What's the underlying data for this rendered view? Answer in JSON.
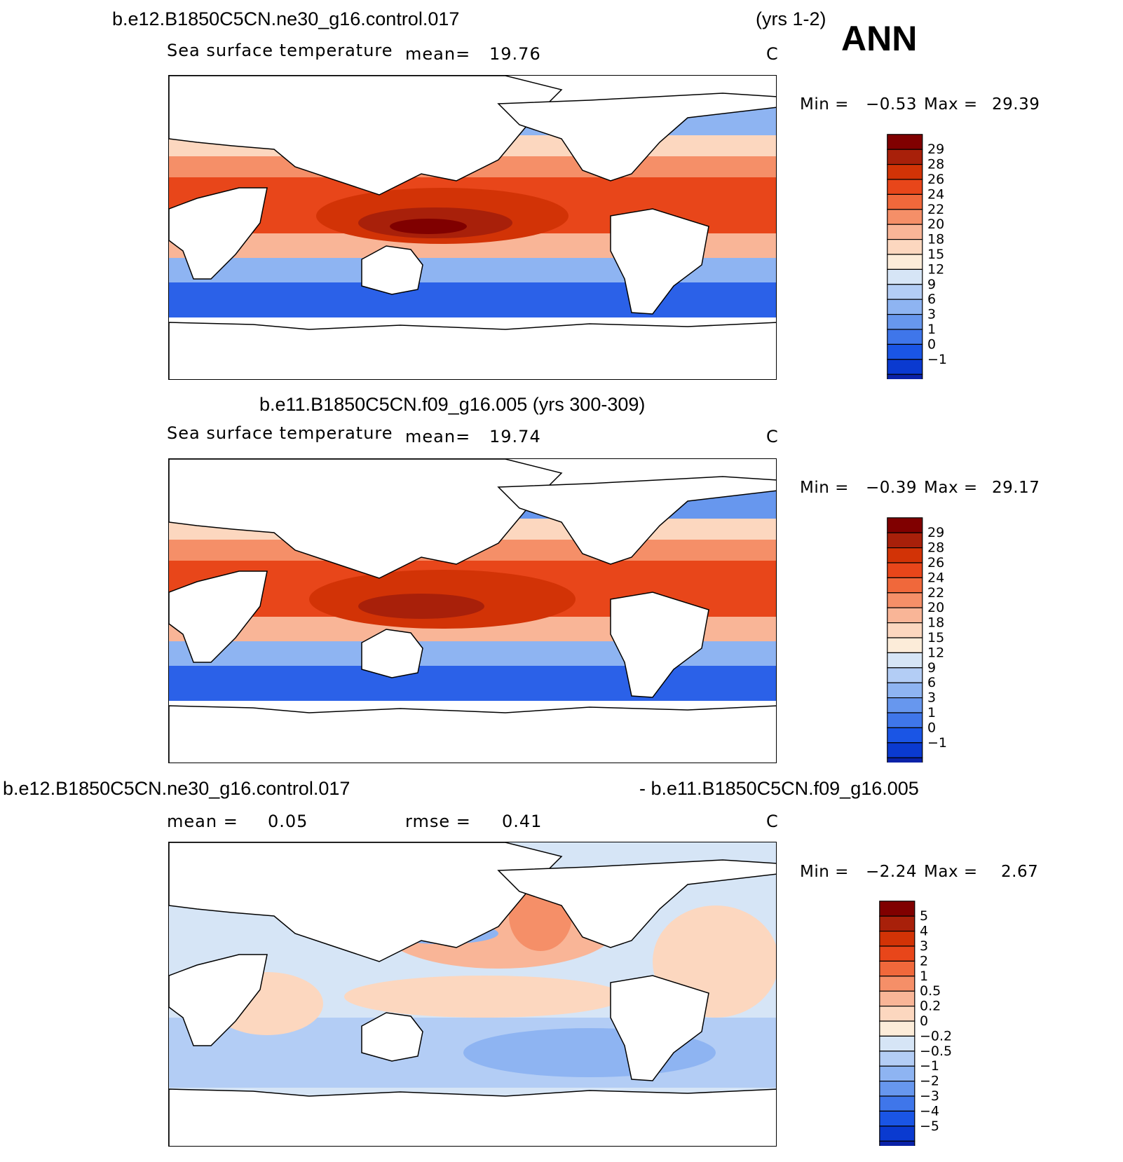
{
  "season": "ANN",
  "panels": [
    {
      "case_title": "b.e12.B1850C5CN.ne30_g16.control.017",
      "years": "(yrs 1-2)",
      "subtitle": "Sea surface temperature",
      "mean_label": "mean=",
      "mean_value": "19.76",
      "units": "C",
      "min_label": "Min =",
      "min_value": "−0.53",
      "max_label": "Max =",
      "max_value": "29.39"
    },
    {
      "case_title": "b.e11.B1850C5CN.f09_g16.005 (yrs 300-309)",
      "subtitle": "Sea surface temperature",
      "mean_label": "mean=",
      "mean_value": "19.74",
      "units": "C",
      "min_label": "Min =",
      "min_value": "−0.39",
      "max_label": "Max =",
      "max_value": "29.17"
    },
    {
      "case_title_left": "b.e12.B1850C5CN.ne30_g16.control.017",
      "case_title_right": "- b.e11.B1850C5CN.f09_g16.005",
      "mean_label": "mean =",
      "mean_value": "0.05",
      "rmse_label": "rmse =",
      "rmse_value": "0.41",
      "units": "C",
      "min_label": "Min =",
      "min_value": "−2.24",
      "max_label": "Max =",
      "max_value": "2.67"
    }
  ],
  "chart_data": [
    {
      "type": "heatmap",
      "title": "b.e12.B1850C5CN.ne30_g16.control.017 (yrs 1-2)",
      "variable": "Sea surface temperature",
      "units": "C",
      "mean": 19.76,
      "min": -0.53,
      "max": 29.39,
      "levels": [
        "29",
        "28",
        "26",
        "24",
        "22",
        "20",
        "18",
        "15",
        "12",
        "9",
        "6",
        "3",
        "1",
        "0",
        "−1"
      ],
      "colors": [
        "#800000",
        "#a8200a",
        "#d23306",
        "#e8461a",
        "#f0683b",
        "#f58f68",
        "#f9b597",
        "#fcd7bf",
        "#fcecd9",
        "#d6e5f6",
        "#b3cdf5",
        "#8eb4f2",
        "#6797ee",
        "#3f76ea",
        "#1a55e5",
        "#0a3ad0",
        "#0a22a8",
        "#000d80"
      ]
    },
    {
      "type": "heatmap",
      "title": "b.e11.B1850C5CN.f09_g16.005 (yrs 300-309)",
      "variable": "Sea surface temperature",
      "units": "C",
      "mean": 19.74,
      "min": -0.39,
      "max": 29.17,
      "levels": [
        "29",
        "28",
        "26",
        "24",
        "22",
        "20",
        "18",
        "15",
        "12",
        "9",
        "6",
        "3",
        "1",
        "0",
        "−1"
      ],
      "colors": [
        "#800000",
        "#a8200a",
        "#d23306",
        "#e8461a",
        "#f0683b",
        "#f58f68",
        "#f9b597",
        "#fcd7bf",
        "#fcecd9",
        "#d6e5f6",
        "#b3cdf5",
        "#8eb4f2",
        "#6797ee",
        "#3f76ea",
        "#1a55e5",
        "#0a3ad0",
        "#0a22a8",
        "#000d80"
      ]
    },
    {
      "type": "heatmap",
      "title": "b.e12.B1850C5CN.ne30_g16.control.017 - b.e11.B1850C5CN.f09_g16.005",
      "units": "C",
      "mean": 0.05,
      "rmse": 0.41,
      "min": -2.24,
      "max": 2.67,
      "levels": [
        "5",
        "4",
        "3",
        "2",
        "1",
        "0.5",
        "0.2",
        "0",
        "−0.2",
        "−0.5",
        "−1",
        "−2",
        "−3",
        "−4",
        "−5"
      ],
      "colors": [
        "#800000",
        "#a8200a",
        "#d23306",
        "#e8461a",
        "#f0683b",
        "#f58f68",
        "#f9b597",
        "#fcd7bf",
        "#fcecd9",
        "#d6e5f6",
        "#b3cdf5",
        "#8eb4f2",
        "#6797ee",
        "#3f76ea",
        "#1a55e5",
        "#0a3ad0",
        "#0a22a8",
        "#000d80"
      ]
    }
  ]
}
